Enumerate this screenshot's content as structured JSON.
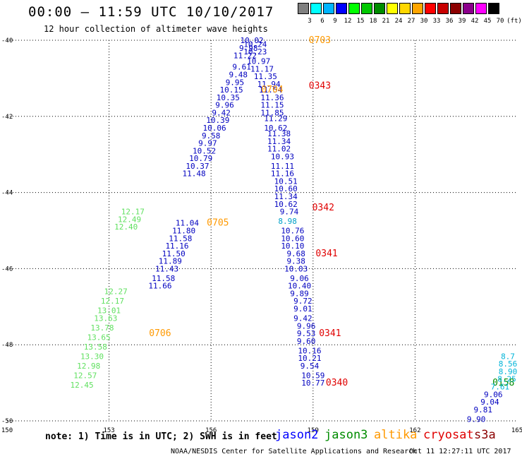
{
  "header": {
    "title": "00:00 – 11:59 UTC 10/10/2017",
    "subtitle": "12 hour collection of altimeter wave heights"
  },
  "color_scale": {
    "unit": "(ft)",
    "bins": [
      {
        "label": "3",
        "color": "#808080"
      },
      {
        "label": "6",
        "color": "#00ffff"
      },
      {
        "label": "9",
        "color": "#00b4ff"
      },
      {
        "label": "12",
        "color": "#0000ff"
      },
      {
        "label": "15",
        "color": "#00ff00"
      },
      {
        "label": "18",
        "color": "#00c800"
      },
      {
        "label": "21",
        "color": "#008c00"
      },
      {
        "label": "24",
        "color": "#ffff00"
      },
      {
        "label": "27",
        "color": "#ffd700"
      },
      {
        "label": "30",
        "color": "#ffa500"
      },
      {
        "label": "33",
        "color": "#ff0000"
      },
      {
        "label": "36",
        "color": "#c80000"
      },
      {
        "label": "39",
        "color": "#8c0000"
      },
      {
        "label": "42",
        "color": "#8b008b"
      },
      {
        "label": "45",
        "color": "#ff00ff"
      },
      {
        "label": "70",
        "color": "#000000"
      }
    ]
  },
  "map": {
    "lon_ticks": [
      "150",
      "153",
      "156",
      "159",
      "162",
      "165"
    ],
    "lat_ticks": [
      "-40",
      "-42",
      "-44",
      "-46",
      "-48",
      "-50"
    ]
  },
  "passes": [
    {
      "satellite": "jason2",
      "time_label": "0343",
      "time_color": "#e00000",
      "lat": -41.2,
      "color": "#0000c0",
      "points": [
        {
          "lon": 157.2,
          "lat": -40.0,
          "value": "10.02"
        },
        {
          "lon": 157.3,
          "lat": -40.1,
          "value": "10.24"
        },
        {
          "lon": 157.1,
          "lat": -40.2,
          "value": "9.98"
        },
        {
          "lon": 157.3,
          "lat": -40.3,
          "value": "10.23"
        },
        {
          "lon": 157.0,
          "lat": -40.4,
          "value": "11.22"
        },
        {
          "lon": 157.4,
          "lat": -40.55,
          "value": "10.97"
        },
        {
          "lon": 156.9,
          "lat": -40.7,
          "value": "9.61"
        },
        {
          "lon": 157.5,
          "lat": -40.75,
          "value": "11.17"
        },
        {
          "lon": 156.8,
          "lat": -40.9,
          "value": "9.48"
        },
        {
          "lon": 157.6,
          "lat": -40.95,
          "value": "11.35"
        },
        {
          "lon": 156.7,
          "lat": -41.1,
          "value": "9.95"
        },
        {
          "lon": 157.7,
          "lat": -41.15,
          "value": "11.94"
        },
        {
          "lon": 156.6,
          "lat": -41.3,
          "value": "10.15"
        },
        {
          "lon": 157.75,
          "lat": -41.3,
          "value": "11.54"
        },
        {
          "lon": 156.5,
          "lat": -41.5,
          "value": "10.35"
        },
        {
          "lon": 157.8,
          "lat": -41.5,
          "value": "11.36"
        },
        {
          "lon": 156.4,
          "lat": -41.7,
          "value": "9.96"
        },
        {
          "lon": 157.8,
          "lat": -41.7,
          "value": "11.15"
        },
        {
          "lon": 156.3,
          "lat": -41.9,
          "value": "9.42"
        },
        {
          "lon": 157.8,
          "lat": -41.9,
          "value": "11.85"
        },
        {
          "lon": 156.2,
          "lat": -42.1,
          "value": "10.39"
        },
        {
          "lon": 157.9,
          "lat": -42.05,
          "value": "11.29"
        },
        {
          "lon": 156.1,
          "lat": -42.3,
          "value": "10.06"
        },
        {
          "lon": 157.9,
          "lat": -42.3,
          "value": "10.62"
        },
        {
          "lon": 156.0,
          "lat": -42.5,
          "value": "9.58"
        },
        {
          "lon": 158.0,
          "lat": -42.45,
          "value": "11.38"
        },
        {
          "lon": 155.9,
          "lat": -42.7,
          "value": "9.97"
        },
        {
          "lon": 158.0,
          "lat": -42.65,
          "value": "11.34"
        },
        {
          "lon": 155.8,
          "lat": -42.9,
          "value": "10.52"
        },
        {
          "lon": 158.0,
          "lat": -42.85,
          "value": "11.02"
        },
        {
          "lon": 155.7,
          "lat": -43.1,
          "value": "10.79"
        },
        {
          "lon": 158.1,
          "lat": -43.05,
          "value": "10.93"
        },
        {
          "lon": 155.6,
          "lat": -43.3,
          "value": "10.37"
        },
        {
          "lon": 158.1,
          "lat": -43.3,
          "value": "11.11"
        },
        {
          "lon": 155.5,
          "lat": -43.5,
          "value": "11.48"
        },
        {
          "lon": 158.1,
          "lat": -43.5,
          "value": "11.16"
        },
        {
          "lon": 158.2,
          "lat": -43.7,
          "value": "10.51"
        },
        {
          "lon": 158.2,
          "lat": -43.9,
          "value": "10.60"
        },
        {
          "lon": 158.2,
          "lat": -44.1,
          "value": "11.34"
        },
        {
          "lon": 158.2,
          "lat": -44.3,
          "value": "10.62"
        },
        {
          "lon": 158.3,
          "lat": -44.5,
          "value": "9.74"
        },
        {
          "lon": 155.3,
          "lat": -44.8,
          "value": "11.04"
        },
        {
          "lon": 155.2,
          "lat": -45.0,
          "value": "11.80"
        },
        {
          "lon": 155.1,
          "lat": -45.2,
          "value": "11.58"
        },
        {
          "lon": 155.0,
          "lat": -45.4,
          "value": "11.16"
        },
        {
          "lon": 154.9,
          "lat": -45.6,
          "value": "11.50"
        },
        {
          "lon": 154.8,
          "lat": -45.8,
          "value": "11.89"
        },
        {
          "lon": 154.7,
          "lat": -46.0,
          "value": "11.43"
        },
        {
          "lon": 154.6,
          "lat": -46.25,
          "value": "11.58"
        },
        {
          "lon": 154.5,
          "lat": -46.45,
          "value": "11.66"
        },
        {
          "lon": 158.4,
          "lat": -45.0,
          "value": "10.76"
        },
        {
          "lon": 158.4,
          "lat": -45.2,
          "value": "10.60"
        },
        {
          "lon": 158.4,
          "lat": -45.4,
          "value": "10.10"
        },
        {
          "lon": 158.5,
          "lat": -45.6,
          "value": "9.68"
        },
        {
          "lon": 158.5,
          "lat": -45.8,
          "value": "9.38"
        },
        {
          "lon": 158.5,
          "lat": -46.0,
          "value": "10.03"
        },
        {
          "lon": 158.6,
          "lat": -46.25,
          "value": "9.06"
        },
        {
          "lon": 158.6,
          "lat": -46.45,
          "value": "10.40"
        },
        {
          "lon": 158.6,
          "lat": -46.65,
          "value": "9.89"
        },
        {
          "lon": 158.7,
          "lat": -46.85,
          "value": "9.72"
        },
        {
          "lon": 158.7,
          "lat": -47.05,
          "value": "9.01"
        },
        {
          "lon": 158.7,
          "lat": -47.3,
          "value": "9.42"
        },
        {
          "lon": 158.8,
          "lat": -47.5,
          "value": "9.96"
        },
        {
          "lon": 158.8,
          "lat": -47.7,
          "value": "9.53"
        },
        {
          "lon": 158.8,
          "lat": -47.9,
          "value": "9.60"
        },
        {
          "lon": 158.9,
          "lat": -48.15,
          "value": "10.16"
        },
        {
          "lon": 158.9,
          "lat": -48.35,
          "value": "10.21"
        },
        {
          "lon": 158.9,
          "lat": -48.55,
          "value": "9.54"
        },
        {
          "lon": 159.0,
          "lat": -48.8,
          "value": "10.59"
        },
        {
          "lon": 159.0,
          "lat": -49.0,
          "value": "10.77"
        }
      ]
    }
  ],
  "labels": {
    "cyan_898": {
      "value": "8.98",
      "color": "#00a0c8"
    },
    "green_values": [
      {
        "value": "12.17"
      },
      {
        "value": "12.49"
      },
      {
        "value": "12.40"
      },
      {
        "value": "12.27"
      },
      {
        "value": "12.17"
      },
      {
        "value": "13.01"
      },
      {
        "value": "13.63"
      },
      {
        "value": "13.78"
      },
      {
        "value": "13.65"
      },
      {
        "value": "13.58"
      },
      {
        "value": "13.30"
      },
      {
        "value": "12.98"
      },
      {
        "value": "12.57"
      },
      {
        "value": "12.45"
      }
    ],
    "time_orange": [
      {
        "text": "0703"
      },
      {
        "text": "0704"
      },
      {
        "text": "0705"
      },
      {
        "text": "0706"
      }
    ],
    "time_red": [
      {
        "text": "0343"
      },
      {
        "text": "0342"
      },
      {
        "text": "0341"
      },
      {
        "text": "0341"
      },
      {
        "text": "0340"
      }
    ],
    "time_green": {
      "text": "0158"
    },
    "right_track": [
      {
        "value": "8.7",
        "color": "#00b4d8"
      },
      {
        "value": "8.56",
        "color": "#00b4d8"
      },
      {
        "value": "8.90",
        "color": "#00b4d8"
      },
      {
        "value": "8.25",
        "color": "#00b4d8"
      },
      {
        "value": "7.61",
        "color": "#00b4d8"
      },
      {
        "value": "9.06",
        "color": "#0000c0"
      },
      {
        "value": "9.04",
        "color": "#0000c0"
      },
      {
        "value": "9.81",
        "color": "#0000c0"
      },
      {
        "value": "9.90",
        "color": "#0000c0"
      }
    ]
  },
  "footer": {
    "note": "note: 1) Time is in UTC; 2) SWH is in feet",
    "legend": [
      {
        "name": "jason2",
        "color": "#0000ff"
      },
      {
        "name": "jason3",
        "color": "#008c00"
      },
      {
        "name": "altika",
        "color": "#ff9900"
      },
      {
        "name": "cryosat",
        "color": "#e00000"
      },
      {
        "name": "s3a",
        "color": "#8b0000"
      }
    ],
    "credit": "NOAA/NESDIS Center for Satellite Applications and Research",
    "timestamp": "Oct 11 12:27:11 UTC 2017"
  }
}
